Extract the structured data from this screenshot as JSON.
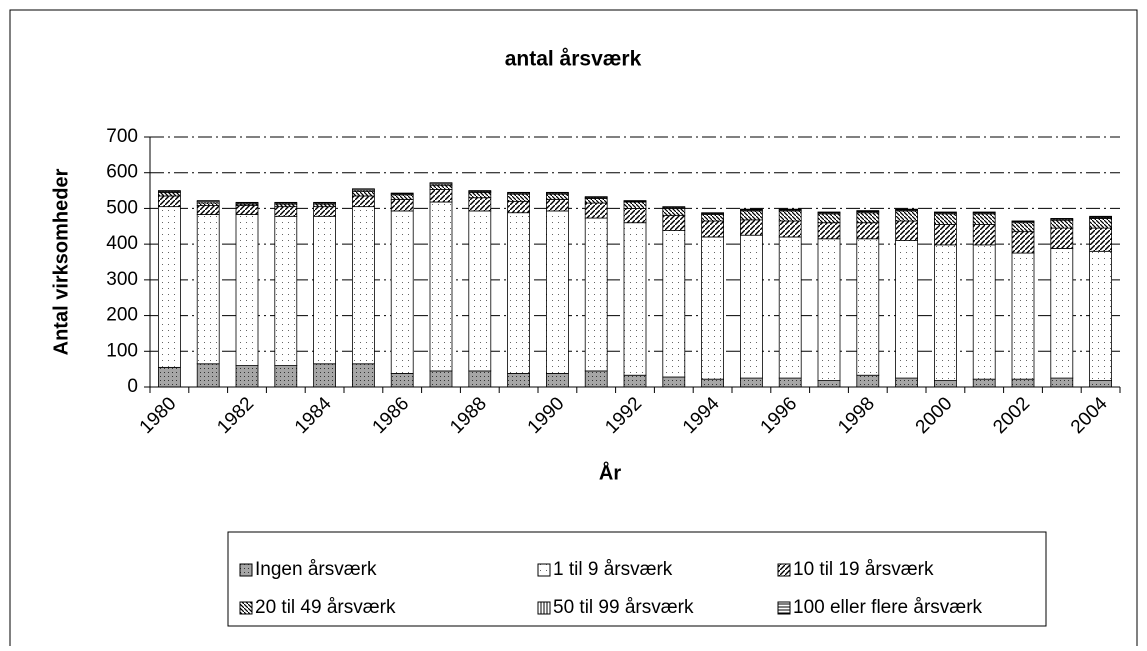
{
  "chart_data": {
    "type": "stacked-bar",
    "title": "antal årsværk",
    "x_label": "År",
    "y_label": "Antal virksomheder",
    "categories": [
      "1980",
      null,
      "1982",
      null,
      "1984",
      null,
      "1986",
      null,
      "1988",
      null,
      "1990",
      null,
      "1992",
      null,
      "1994",
      null,
      "1996",
      null,
      "1998",
      null,
      "2000",
      null,
      "2002",
      null,
      "2004"
    ],
    "series": [
      {
        "name": "Ingen årsværk",
        "color": "#a6a6a6",
        "pattern": "dots",
        "values": [
          55,
          65,
          60,
          60,
          65,
          65,
          38,
          45,
          45,
          38,
          38,
          45,
          33,
          28,
          22,
          25,
          25,
          18,
          33,
          25,
          18,
          22,
          22,
          25,
          18
        ]
      },
      {
        "name": "1 til 9 årsværk",
        "color": "#ffffff",
        "pattern": "sparse-dots",
        "values": [
          450,
          418,
          423,
          418,
          413,
          440,
          455,
          473,
          448,
          450,
          455,
          428,
          427,
          410,
          398,
          400,
          395,
          397,
          382,
          385,
          380,
          376,
          353,
          363,
          362
        ]
      },
      {
        "name": "10 til 19 årsværk",
        "color": "#ffffff",
        "pattern": "diagonal",
        "values": [
          30,
          25,
          25,
          27,
          27,
          30,
          32,
          35,
          37,
          32,
          32,
          42,
          40,
          42,
          45,
          43,
          45,
          45,
          45,
          55,
          57,
          57,
          60,
          57,
          65
        ]
      },
      {
        "name": "20 til 49 årsværk",
        "color": "#ffffff",
        "pattern": "back-diagonal",
        "values": [
          10,
          7,
          4,
          7,
          7,
          13,
          13,
          12,
          15,
          20,
          15,
          13,
          18,
          20,
          18,
          25,
          28,
          25,
          28,
          28,
          30,
          30,
          25,
          22,
          27
        ]
      },
      {
        "name": "50 til 99 årsværk",
        "color": "#ffffff",
        "pattern": "vertical",
        "values": [
          3,
          4,
          3,
          3,
          3,
          4,
          3,
          4,
          3,
          3,
          3,
          3,
          2,
          3,
          3,
          3,
          3,
          3,
          3,
          3,
          3,
          3,
          3,
          3,
          3
        ]
      },
      {
        "name": "100 eller flere årsværk",
        "color": "#ffffff",
        "pattern": "horizontal",
        "values": [
          2,
          3,
          2,
          2,
          2,
          3,
          2,
          3,
          2,
          2,
          2,
          2,
          2,
          2,
          2,
          2,
          2,
          2,
          3,
          2,
          2,
          2,
          2,
          2,
          3
        ]
      }
    ],
    "ylim": [
      0,
      700
    ],
    "yticks": [
      0,
      100,
      200,
      300,
      400,
      500,
      600,
      700
    ],
    "grid": true,
    "legend": "bottom"
  }
}
